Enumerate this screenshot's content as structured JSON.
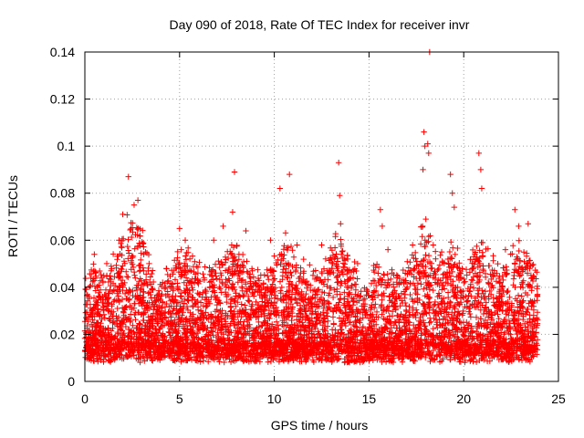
{
  "chart_data": {
    "type": "scatter",
    "title": "Day 090 of 2018, Rate Of TEC Index for receiver invr",
    "xlabel": "GPS time / hours",
    "ylabel": "ROTI / TECUs",
    "xlim": [
      0,
      25
    ],
    "ylim": [
      0,
      0.14
    ],
    "xticks": [
      0,
      5,
      10,
      15,
      20,
      25
    ],
    "yticks": [
      0,
      0.02,
      0.04,
      0.06,
      0.08,
      0.1,
      0.12,
      0.14
    ],
    "grid": true,
    "marker": "plus",
    "color": "#ff0000",
    "series": [
      {
        "name": "ROTI",
        "x_range": [
          0,
          23.9
        ],
        "typical_range": [
          0.005,
          0.04
        ],
        "points": [
          [
            0.5,
            0.054
          ],
          [
            1.0,
            0.045
          ],
          [
            1.8,
            0.06
          ],
          [
            2.0,
            0.071
          ],
          [
            2.3,
            0.087
          ],
          [
            2.6,
            0.075
          ],
          [
            2.8,
            0.077
          ],
          [
            3.2,
            0.055
          ],
          [
            4.3,
            0.048
          ],
          [
            5.0,
            0.065
          ],
          [
            5.3,
            0.06
          ],
          [
            6.8,
            0.06
          ],
          [
            7.3,
            0.066
          ],
          [
            7.8,
            0.072
          ],
          [
            7.9,
            0.089
          ],
          [
            8.5,
            0.064
          ],
          [
            9.8,
            0.06
          ],
          [
            10.3,
            0.082
          ],
          [
            10.8,
            0.088
          ],
          [
            11.2,
            0.058
          ],
          [
            12.5,
            0.058
          ],
          [
            13.4,
            0.093
          ],
          [
            13.45,
            0.079
          ],
          [
            13.5,
            0.067
          ],
          [
            15.6,
            0.073
          ],
          [
            15.7,
            0.066
          ],
          [
            16.0,
            0.056
          ],
          [
            17.3,
            0.058
          ],
          [
            17.9,
            0.106
          ],
          [
            17.95,
            0.1
          ],
          [
            18.1,
            0.101
          ],
          [
            18.15,
            0.097
          ],
          [
            17.85,
            0.09
          ],
          [
            18.2,
            0.14
          ],
          [
            18.0,
            0.069
          ],
          [
            19.3,
            0.088
          ],
          [
            19.4,
            0.08
          ],
          [
            19.5,
            0.074
          ],
          [
            20.8,
            0.097
          ],
          [
            20.9,
            0.09
          ],
          [
            20.95,
            0.082
          ],
          [
            21.0,
            0.059
          ],
          [
            21.8,
            0.05
          ],
          [
            22.2,
            0.056
          ],
          [
            22.7,
            0.073
          ],
          [
            22.9,
            0.066
          ],
          [
            23.4,
            0.067
          ],
          [
            23.6,
            0.04
          ]
        ]
      }
    ]
  }
}
